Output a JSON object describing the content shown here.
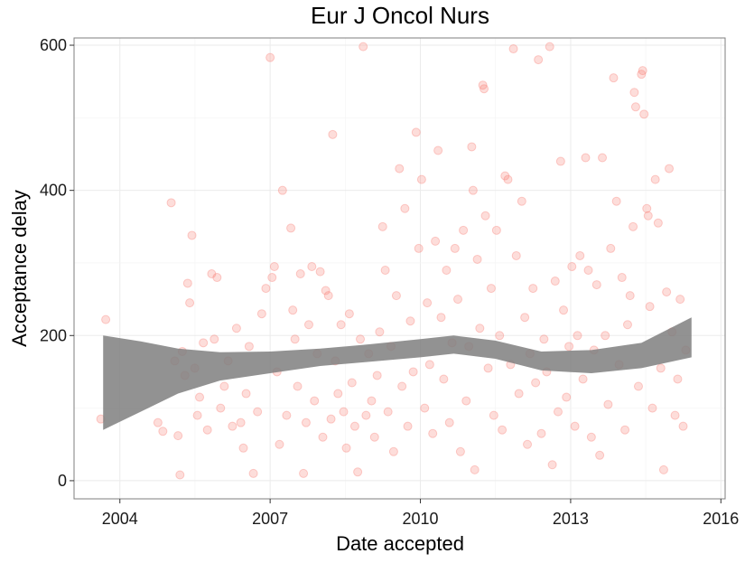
{
  "chart_data": {
    "type": "scatter",
    "title": "Eur J Oncol Nurs",
    "xlabel": "Date accepted",
    "ylabel": "Acceptance delay",
    "xlim": [
      "2003-02-01",
      "2016-02-01"
    ],
    "ylim": [
      -25,
      610
    ],
    "x_ticks": [
      "2004",
      "2007",
      "2010",
      "2013",
      "2016"
    ],
    "y_ticks": [
      "0",
      "200",
      "400",
      "600"
    ],
    "grid": true,
    "legend": "none",
    "colors": {
      "points": "#F8766D",
      "band": "#7F7F7F",
      "panel_border": "#7F7F7F",
      "grid": "#EBEBEB"
    },
    "smooth_band": {
      "x": [
        "2003-09-01",
        "2004-06-01",
        "2005-03-01",
        "2006-01-01",
        "2007-01-01",
        "2008-01-01",
        "2009-01-01",
        "2010-01-01",
        "2010-09-01",
        "2011-07-01",
        "2012-06-01",
        "2013-06-01",
        "2014-06-01",
        "2015-06-01"
      ],
      "upper": [
        200,
        192,
        182,
        177,
        178,
        182,
        188,
        195,
        200,
        193,
        178,
        180,
        190,
        225
      ],
      "lower": [
        70,
        95,
        120,
        138,
        148,
        158,
        164,
        170,
        175,
        168,
        152,
        148,
        155,
        170
      ]
    },
    "points": [
      [
        "2003-08-15",
        85
      ],
      [
        "2003-09-20",
        222
      ],
      [
        "2004-10-05",
        80
      ],
      [
        "2004-11-10",
        68
      ],
      [
        "2005-01-10",
        383
      ],
      [
        "2005-02-05",
        165
      ],
      [
        "2005-03-01",
        62
      ],
      [
        "2005-03-15",
        8
      ],
      [
        "2005-04-01",
        178
      ],
      [
        "2005-04-20",
        145
      ],
      [
        "2005-05-10",
        272
      ],
      [
        "2005-05-25",
        245
      ],
      [
        "2005-06-10",
        338
      ],
      [
        "2005-07-01",
        155
      ],
      [
        "2005-07-20",
        90
      ],
      [
        "2005-08-05",
        115
      ],
      [
        "2005-09-01",
        190
      ],
      [
        "2005-10-01",
        70
      ],
      [
        "2005-11-01",
        285
      ],
      [
        "2005-11-20",
        195
      ],
      [
        "2005-12-10",
        280
      ],
      [
        "2006-01-05",
        100
      ],
      [
        "2006-02-01",
        130
      ],
      [
        "2006-03-01",
        165
      ],
      [
        "2006-04-01",
        75
      ],
      [
        "2006-05-01",
        210
      ],
      [
        "2006-06-01",
        80
      ],
      [
        "2006-06-20",
        45
      ],
      [
        "2006-07-10",
        120
      ],
      [
        "2006-08-01",
        185
      ],
      [
        "2006-09-01",
        10
      ],
      [
        "2006-10-01",
        95
      ],
      [
        "2006-11-01",
        230
      ],
      [
        "2006-12-01",
        265
      ],
      [
        "2007-01-01",
        583
      ],
      [
        "2007-01-15",
        280
      ],
      [
        "2007-02-01",
        295
      ],
      [
        "2007-02-20",
        150
      ],
      [
        "2007-03-10",
        50
      ],
      [
        "2007-04-01",
        400
      ],
      [
        "2007-05-01",
        90
      ],
      [
        "2007-06-01",
        348
      ],
      [
        "2007-06-15",
        235
      ],
      [
        "2007-07-01",
        195
      ],
      [
        "2007-07-20",
        130
      ],
      [
        "2007-08-10",
        285
      ],
      [
        "2007-09-01",
        10
      ],
      [
        "2007-09-20",
        80
      ],
      [
        "2007-10-10",
        215
      ],
      [
        "2007-11-01",
        295
      ],
      [
        "2007-11-20",
        110
      ],
      [
        "2007-12-10",
        175
      ],
      [
        "2008-01-01",
        288
      ],
      [
        "2008-01-20",
        60
      ],
      [
        "2008-02-10",
        262
      ],
      [
        "2008-03-01",
        255
      ],
      [
        "2008-03-20",
        85
      ],
      [
        "2008-04-01",
        477
      ],
      [
        "2008-04-20",
        165
      ],
      [
        "2008-05-10",
        120
      ],
      [
        "2008-06-01",
        215
      ],
      [
        "2008-06-20",
        95
      ],
      [
        "2008-07-10",
        45
      ],
      [
        "2008-08-01",
        230
      ],
      [
        "2008-08-20",
        135
      ],
      [
        "2008-09-10",
        75
      ],
      [
        "2008-10-01",
        12
      ],
      [
        "2008-10-20",
        195
      ],
      [
        "2008-11-10",
        598
      ],
      [
        "2008-12-01",
        90
      ],
      [
        "2008-12-20",
        175
      ],
      [
        "2009-01-10",
        110
      ],
      [
        "2009-02-01",
        60
      ],
      [
        "2009-02-20",
        145
      ],
      [
        "2009-03-10",
        205
      ],
      [
        "2009-04-01",
        350
      ],
      [
        "2009-04-20",
        290
      ],
      [
        "2009-05-10",
        95
      ],
      [
        "2009-06-01",
        185
      ],
      [
        "2009-06-20",
        40
      ],
      [
        "2009-07-10",
        255
      ],
      [
        "2009-08-01",
        430
      ],
      [
        "2009-08-20",
        130
      ],
      [
        "2009-09-10",
        375
      ],
      [
        "2009-10-01",
        75
      ],
      [
        "2009-10-20",
        220
      ],
      [
        "2009-11-10",
        150
      ],
      [
        "2009-12-01",
        480
      ],
      [
        "2009-12-20",
        320
      ],
      [
        "2010-01-10",
        415
      ],
      [
        "2010-02-01",
        100
      ],
      [
        "2010-02-20",
        245
      ],
      [
        "2010-03-10",
        160
      ],
      [
        "2010-04-01",
        65
      ],
      [
        "2010-04-20",
        330
      ],
      [
        "2010-05-10",
        455
      ],
      [
        "2010-06-01",
        225
      ],
      [
        "2010-06-20",
        140
      ],
      [
        "2010-07-10",
        290
      ],
      [
        "2010-08-01",
        80
      ],
      [
        "2010-08-20",
        190
      ],
      [
        "2010-09-10",
        320
      ],
      [
        "2010-10-01",
        250
      ],
      [
        "2010-10-20",
        40
      ],
      [
        "2010-11-10",
        345
      ],
      [
        "2010-12-01",
        110
      ],
      [
        "2010-12-20",
        185
      ],
      [
        "2011-01-10",
        460
      ],
      [
        "2011-01-20",
        400
      ],
      [
        "2011-02-01",
        15
      ],
      [
        "2011-02-20",
        305
      ],
      [
        "2011-03-10",
        210
      ],
      [
        "2011-04-01",
        545
      ],
      [
        "2011-04-10",
        540
      ],
      [
        "2011-04-20",
        365
      ],
      [
        "2011-05-10",
        155
      ],
      [
        "2011-06-01",
        265
      ],
      [
        "2011-06-20",
        90
      ],
      [
        "2011-07-10",
        345
      ],
      [
        "2011-08-01",
        200
      ],
      [
        "2011-08-20",
        70
      ],
      [
        "2011-09-10",
        420
      ],
      [
        "2011-10-01",
        415
      ],
      [
        "2011-10-20",
        160
      ],
      [
        "2011-11-10",
        595
      ],
      [
        "2011-12-01",
        310
      ],
      [
        "2011-12-20",
        120
      ],
      [
        "2012-01-10",
        385
      ],
      [
        "2012-02-01",
        225
      ],
      [
        "2012-02-20",
        50
      ],
      [
        "2012-03-10",
        175
      ],
      [
        "2012-04-01",
        265
      ],
      [
        "2012-04-20",
        135
      ],
      [
        "2012-05-10",
        580
      ],
      [
        "2012-06-01",
        65
      ],
      [
        "2012-06-20",
        195
      ],
      [
        "2012-07-10",
        150
      ],
      [
        "2012-08-01",
        598
      ],
      [
        "2012-08-20",
        22
      ],
      [
        "2012-09-10",
        275
      ],
      [
        "2012-10-01",
        95
      ],
      [
        "2012-10-20",
        440
      ],
      [
        "2012-11-10",
        235
      ],
      [
        "2012-12-01",
        115
      ],
      [
        "2012-12-20",
        185
      ],
      [
        "2013-01-10",
        295
      ],
      [
        "2013-02-01",
        75
      ],
      [
        "2013-02-20",
        200
      ],
      [
        "2013-03-10",
        310
      ],
      [
        "2013-04-01",
        140
      ],
      [
        "2013-04-20",
        445
      ],
      [
        "2013-05-10",
        290
      ],
      [
        "2013-06-01",
        60
      ],
      [
        "2013-06-20",
        180
      ],
      [
        "2013-07-10",
        270
      ],
      [
        "2013-08-01",
        35
      ],
      [
        "2013-08-20",
        445
      ],
      [
        "2013-09-10",
        200
      ],
      [
        "2013-10-01",
        105
      ],
      [
        "2013-10-20",
        320
      ],
      [
        "2013-11-10",
        555
      ],
      [
        "2013-12-01",
        385
      ],
      [
        "2013-12-20",
        160
      ],
      [
        "2014-01-10",
        280
      ],
      [
        "2014-02-01",
        70
      ],
      [
        "2014-02-20",
        215
      ],
      [
        "2014-03-10",
        255
      ],
      [
        "2014-04-01",
        350
      ],
      [
        "2014-04-10",
        535
      ],
      [
        "2014-04-20",
        515
      ],
      [
        "2014-05-10",
        130
      ],
      [
        "2014-06-01",
        560
      ],
      [
        "2014-06-10",
        565
      ],
      [
        "2014-06-20",
        505
      ],
      [
        "2014-07-10",
        375
      ],
      [
        "2014-07-20",
        365
      ],
      [
        "2014-08-01",
        240
      ],
      [
        "2014-08-20",
        100
      ],
      [
        "2014-09-10",
        415
      ],
      [
        "2014-10-01",
        355
      ],
      [
        "2014-10-20",
        155
      ],
      [
        "2014-11-10",
        15
      ],
      [
        "2014-12-01",
        260
      ],
      [
        "2014-12-20",
        430
      ],
      [
        "2015-01-10",
        205
      ],
      [
        "2015-02-01",
        90
      ],
      [
        "2015-02-20",
        140
      ],
      [
        "2015-03-10",
        250
      ],
      [
        "2015-04-01",
        75
      ],
      [
        "2015-04-20",
        180
      ]
    ]
  }
}
